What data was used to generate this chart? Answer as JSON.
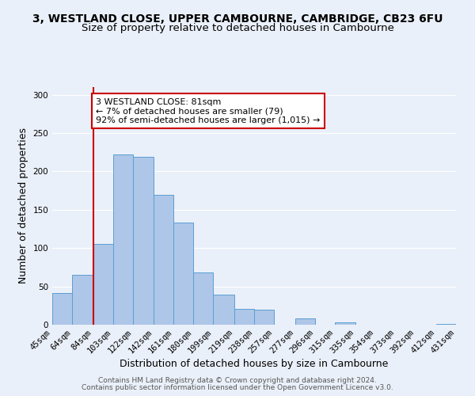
{
  "title": "3, WESTLAND CLOSE, UPPER CAMBOURNE, CAMBRIDGE, CB23 6FU",
  "subtitle": "Size of property relative to detached houses in Cambourne",
  "xlabel": "Distribution of detached houses by size in Cambourne",
  "ylabel": "Number of detached properties",
  "bin_labels": [
    "45sqm",
    "64sqm",
    "84sqm",
    "103sqm",
    "122sqm",
    "142sqm",
    "161sqm",
    "180sqm",
    "199sqm",
    "219sqm",
    "238sqm",
    "257sqm",
    "277sqm",
    "296sqm",
    "315sqm",
    "335sqm",
    "354sqm",
    "373sqm",
    "392sqm",
    "412sqm",
    "431sqm"
  ],
  "bin_edges": [
    45,
    64,
    84,
    103,
    122,
    142,
    161,
    180,
    199,
    219,
    238,
    257,
    277,
    296,
    315,
    335,
    354,
    373,
    392,
    412,
    431
  ],
  "bar_heights": [
    41,
    65,
    105,
    222,
    219,
    169,
    133,
    68,
    39,
    21,
    20,
    0,
    8,
    0,
    3,
    0,
    0,
    0,
    0,
    1
  ],
  "bar_color": "#aec6e8",
  "bar_edge_color": "#5a9fd4",
  "vline_x": 84,
  "vline_color": "#cc0000",
  "annotation_text": "3 WESTLAND CLOSE: 81sqm\n← 7% of detached houses are smaller (79)\n92% of semi-detached houses are larger (1,015) →",
  "annotation_box_edgecolor": "#cc0000",
  "annotation_box_facecolor": "#ffffff",
  "ylim": [
    0,
    310
  ],
  "yticks": [
    0,
    50,
    100,
    150,
    200,
    250,
    300
  ],
  "footer1": "Contains HM Land Registry data © Crown copyright and database right 2024.",
  "footer2": "Contains public sector information licensed under the Open Government Licence v3.0.",
  "background_color": "#eaf0f9",
  "plot_background_color": "#eaf0f9",
  "grid_color": "#ffffff",
  "title_fontsize": 10,
  "subtitle_fontsize": 9.5,
  "axis_label_fontsize": 9,
  "tick_fontsize": 7.5,
  "footer_fontsize": 6.5,
  "annotation_fontsize": 8
}
